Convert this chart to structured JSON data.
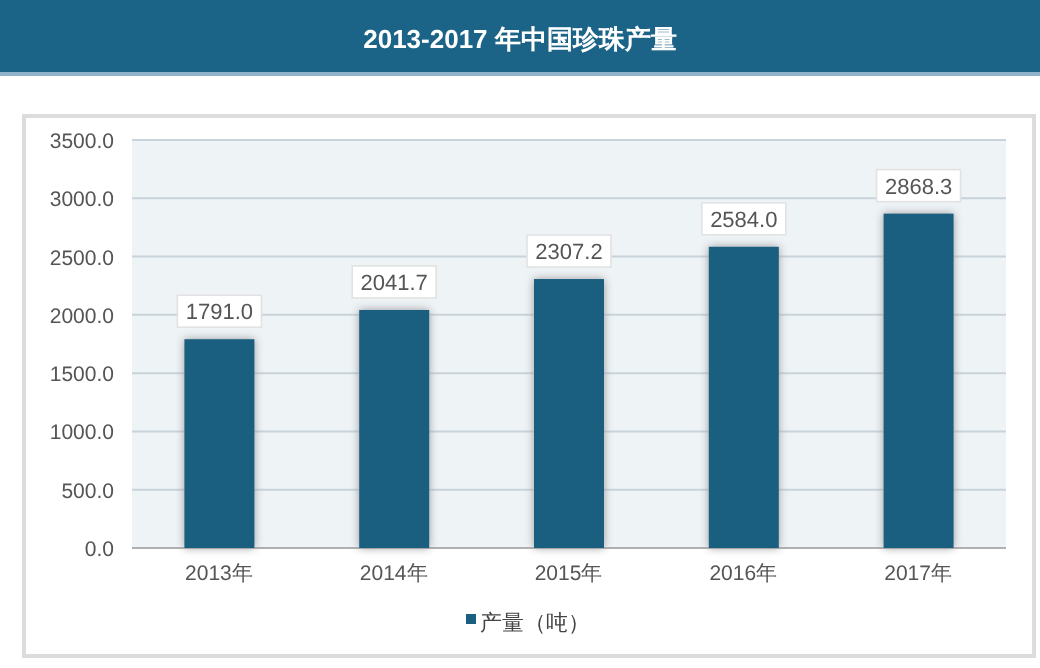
{
  "chart_data": {
    "type": "bar",
    "title": "2013-2017 年中国珍珠产量",
    "categories": [
      "2013年",
      "2014年",
      "2015年",
      "2016年",
      "2017年"
    ],
    "series": [
      {
        "name": "产量（吨）",
        "color": "#1b5f80",
        "values": [
          1791.0,
          2041.7,
          2307.2,
          2584.0,
          2868.3
        ],
        "value_labels": [
          "1791.0",
          "2041.7",
          "2307.2",
          "2584.0",
          "2868.3"
        ]
      }
    ],
    "ylim": [
      0,
      3500
    ],
    "yticks": [
      {
        "value": 0,
        "label": "0.0"
      },
      {
        "value": 500,
        "label": "500.0"
      },
      {
        "value": 1000,
        "label": "1000.0"
      },
      {
        "value": 1500,
        "label": "1500.0"
      },
      {
        "value": 2000,
        "label": "2000.0"
      },
      {
        "value": 2500,
        "label": "2500.0"
      },
      {
        "value": 3000,
        "label": "3000.0"
      },
      {
        "value": 3500,
        "label": "3500.0"
      }
    ],
    "grid": "y",
    "legend": "bottom"
  }
}
